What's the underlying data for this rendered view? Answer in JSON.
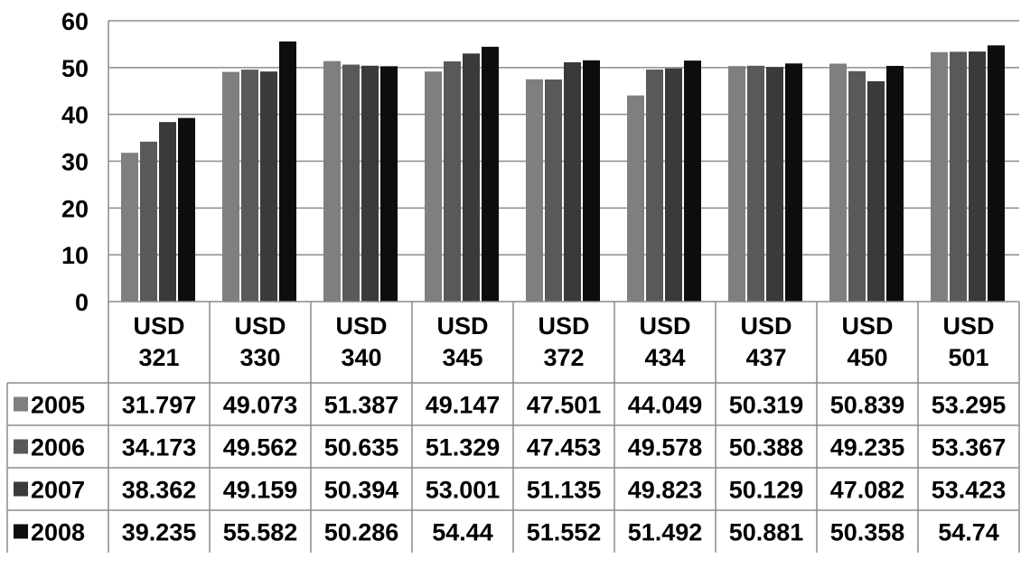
{
  "chart_data": {
    "type": "bar",
    "title": "",
    "xlabel": "",
    "ylabel": "",
    "ylim": [
      0,
      60
    ],
    "yticks": [
      0,
      10,
      20,
      30,
      40,
      50,
      60
    ],
    "grid": true,
    "legend": "data-table-left",
    "categories": [
      "USD\n321",
      "USD\n330",
      "USD\n340",
      "USD\n345",
      "USD\n372",
      "USD\n434",
      "USD\n437",
      "USD\n450",
      "USD\n501"
    ],
    "series": [
      {
        "name": "2005",
        "color": "#7f7f7f",
        "values": [
          31.797,
          49.073,
          51.387,
          49.147,
          47.501,
          44.049,
          50.319,
          50.839,
          53.295
        ],
        "labels": [
          "31.797",
          "49.073",
          "51.387",
          "49.147",
          "47.501",
          "44.049",
          "50.319",
          "50.839",
          "53.295"
        ]
      },
      {
        "name": "2006",
        "color": "#595959",
        "values": [
          34.173,
          49.562,
          50.635,
          51.329,
          47.453,
          49.578,
          50.388,
          49.235,
          53.367
        ],
        "labels": [
          "34.173",
          "49.562",
          "50.635",
          "51.329",
          "47.453",
          "49.578",
          "50.388",
          "49.235",
          "53.367"
        ]
      },
      {
        "name": "2007",
        "color": "#3a3a3a",
        "values": [
          38.362,
          49.159,
          50.394,
          53.001,
          51.135,
          49.823,
          50.129,
          47.082,
          53.423
        ],
        "labels": [
          "38.362",
          "49.159",
          "50.394",
          "53.001",
          "51.135",
          "49.823",
          "50.129",
          "47.082",
          "53.423"
        ]
      },
      {
        "name": "2008",
        "color": "#0d0d0d",
        "values": [
          39.235,
          55.582,
          50.286,
          54.44,
          51.552,
          51.492,
          50.881,
          50.358,
          54.74
        ],
        "labels": [
          "39.235",
          "55.582",
          "50.286",
          "54.44",
          "51.552",
          "51.492",
          "50.881",
          "50.358",
          "54.74"
        ]
      }
    ]
  }
}
